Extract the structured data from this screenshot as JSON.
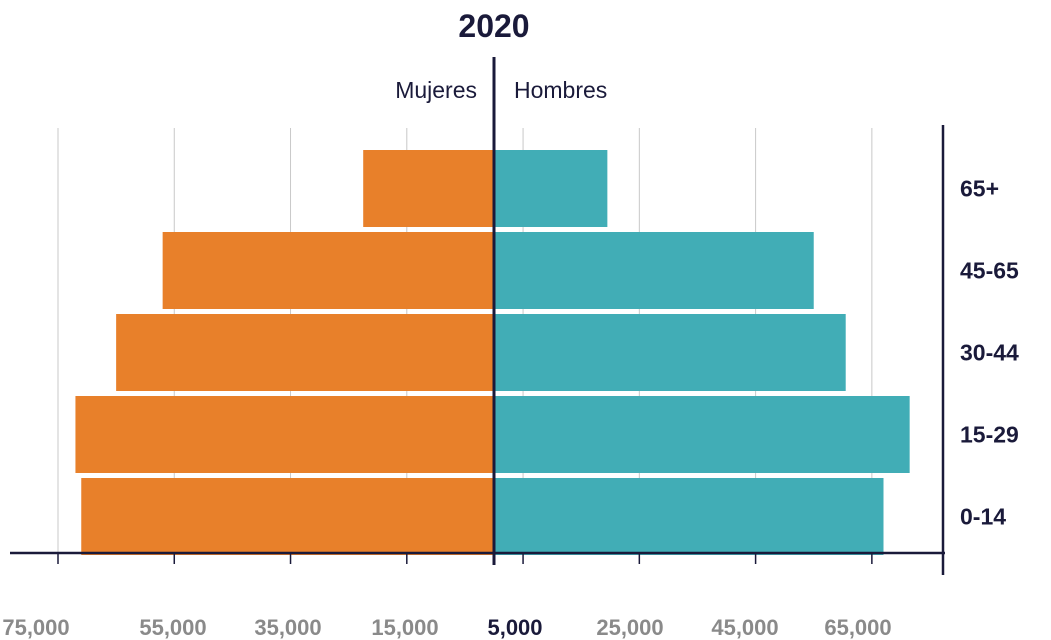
{
  "chart_data": {
    "type": "bar",
    "orientation": "horizontal",
    "layout": "population-pyramid",
    "title": "2020",
    "categories": [
      "0-14",
      "15-29",
      "30-44",
      "45-65",
      "65+"
    ],
    "series": [
      {
        "name": "Mujeres",
        "side": "left",
        "color": "#e8802a",
        "values": [
          71000,
          72000,
          65000,
          57000,
          22500
        ]
      },
      {
        "name": "Hombres",
        "side": "right",
        "color": "#41adb6",
        "values": [
          67000,
          71500,
          60500,
          55000,
          19500
        ]
      }
    ],
    "x_tick_labels": [
      "75,000",
      "55,000",
      "35,000",
      "15,000",
      "5,000",
      "25,000",
      "45,000",
      "65,000"
    ],
    "xlim": [
      -75000,
      75000
    ],
    "grid": true,
    "colors": {
      "axis": "#1a1a3a",
      "grid": "#c8c8c8",
      "tick_text": "#8a8a8a"
    }
  }
}
